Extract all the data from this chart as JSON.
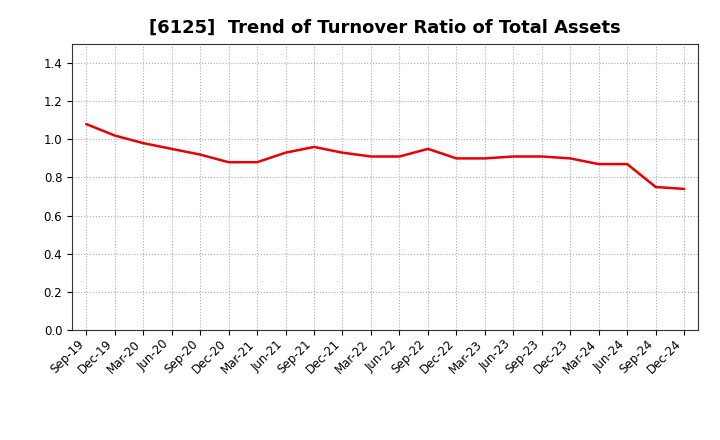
{
  "title": "[6125]  Trend of Turnover Ratio of Total Assets",
  "x_labels": [
    "Sep-19",
    "Dec-19",
    "Mar-20",
    "Jun-20",
    "Sep-20",
    "Dec-20",
    "Mar-21",
    "Jun-21",
    "Sep-21",
    "Dec-21",
    "Mar-22",
    "Jun-22",
    "Sep-22",
    "Dec-22",
    "Mar-23",
    "Jun-23",
    "Sep-23",
    "Dec-23",
    "Mar-24",
    "Jun-24",
    "Sep-24",
    "Dec-24"
  ],
  "y_values": [
    1.08,
    1.02,
    0.98,
    0.95,
    0.92,
    0.88,
    0.88,
    0.93,
    0.96,
    0.93,
    0.91,
    0.91,
    0.95,
    0.9,
    0.9,
    0.91,
    0.91,
    0.9,
    0.87,
    0.87,
    0.75,
    0.74
  ],
  "line_color": "#e80000",
  "line_width": 1.8,
  "ylim": [
    0.0,
    1.5
  ],
  "yticks": [
    0.0,
    0.2,
    0.4,
    0.6,
    0.8,
    1.0,
    1.2,
    1.4
  ],
  "grid_color": "#aaaaaa",
  "grid_style": "dotted",
  "background_color": "#ffffff",
  "title_fontsize": 13,
  "tick_fontsize": 8.5
}
